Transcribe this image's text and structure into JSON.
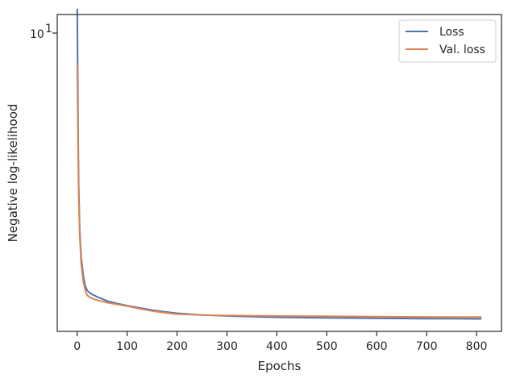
{
  "chart_data": {
    "type": "line",
    "xlabel": "Epochs",
    "ylabel": "Negative log-likelihood",
    "xlim": [
      -40,
      850
    ],
    "ylim": [
      1.62,
      11.2
    ],
    "yscale": "log",
    "xticks": [
      0,
      100,
      200,
      300,
      400,
      500,
      600,
      700,
      800
    ],
    "yticks": [
      {
        "value": 10,
        "base": "10",
        "exp": "1"
      }
    ],
    "grid": false,
    "legend_position": "upper right",
    "series": [
      {
        "name": "Loss",
        "color": "#4c72b0",
        "x": [
          0,
          1,
          2,
          3,
          5,
          8,
          12,
          16,
          20,
          25,
          30,
          40,
          50,
          60,
          80,
          100,
          125,
          150,
          175,
          200,
          225,
          250,
          275,
          300,
          350,
          400,
          450,
          500,
          550,
          600,
          650,
          700,
          750,
          800,
          810
        ],
        "y": [
          11.6,
          7.8,
          5.2,
          3.95,
          3.0,
          2.55,
          2.28,
          2.14,
          2.08,
          2.05,
          2.03,
          2.0,
          1.975,
          1.95,
          1.92,
          1.895,
          1.87,
          1.845,
          1.825,
          1.81,
          1.8,
          1.79,
          1.785,
          1.78,
          1.772,
          1.766,
          1.762,
          1.759,
          1.757,
          1.755,
          1.753,
          1.751,
          1.75,
          1.748,
          1.748
        ]
      },
      {
        "name": "Val. loss",
        "color": "#dd8452",
        "x": [
          0,
          1,
          2,
          3,
          5,
          8,
          12,
          16,
          20,
          25,
          30,
          40,
          50,
          60,
          80,
          100,
          125,
          150,
          175,
          200,
          225,
          250,
          275,
          300,
          350,
          400,
          450,
          500,
          550,
          600,
          650,
          700,
          750,
          800,
          810
        ],
        "y": [
          8.3,
          6.1,
          4.6,
          3.7,
          2.9,
          2.45,
          2.2,
          2.08,
          2.02,
          1.995,
          1.98,
          1.96,
          1.945,
          1.93,
          1.91,
          1.89,
          1.86,
          1.835,
          1.815,
          1.8,
          1.795,
          1.79,
          1.787,
          1.785,
          1.782,
          1.78,
          1.778,
          1.776,
          1.774,
          1.772,
          1.77,
          1.769,
          1.768,
          1.767,
          1.767
        ]
      }
    ]
  }
}
